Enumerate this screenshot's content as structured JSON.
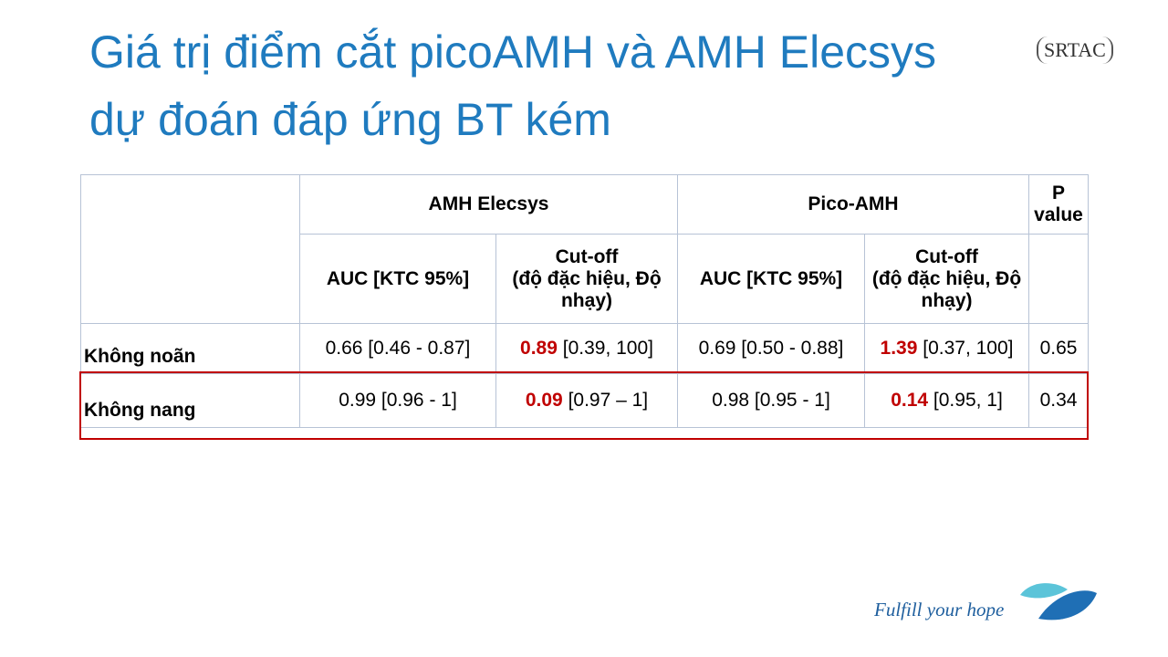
{
  "header": {
    "title_lines": [
      "Giá trị điểm cắt picoAMH và AMH Elecsys",
      "dự đoán đáp ứng BT kém"
    ],
    "logo": "SRTAC"
  },
  "table": {
    "group_headers": [
      "AMH Elecsys",
      "Pico-AMH",
      "P value"
    ],
    "sub_headers": [
      "AUC [KTC 95%]",
      "Cut-off\n(độ đặc hiệu, Độ nhạy)",
      "AUC [KTC 95%]",
      "Cut-off\n(độ đặc hiệu, Độ nhạy)"
    ],
    "rows": [
      [
        "Không noãn",
        "0.66 [0.46 - 0.87]",
        {
          "value": "0.89",
          "interval": "[0.39, 100]"
        },
        "0.69 [0.50 - 0.88]",
        {
          "value": "1.39",
          "interval": "[0.37, 100]"
        },
        "0.65"
      ],
      [
        "Không nang",
        "0.99 [0.96 - 1]",
        {
          "value": "0.09",
          "interval": "[0.97 – 1]"
        },
        "0.98 [0.95 - 1]",
        {
          "value": "0.14",
          "interval": "[0.95, 1]"
        },
        "0.34"
      ]
    ]
  },
  "footer": {
    "tagline": "Fulfill your hope"
  }
}
